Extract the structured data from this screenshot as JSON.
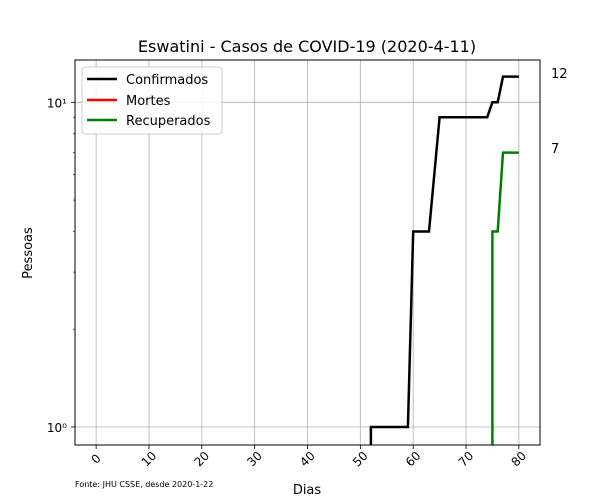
{
  "chart_data": {
    "type": "line",
    "title": "Eswatini - Casos de COVID-19 (2020-4-11)",
    "xlabel": "Dias",
    "ylabel": "Pessoas",
    "xlim": [
      -4,
      84
    ],
    "ylim": [
      0.88,
      13.5
    ],
    "yscale": "log",
    "grid": true,
    "legend_position": "top-left",
    "xticks": [
      0,
      10,
      20,
      30,
      40,
      50,
      60,
      70,
      80
    ],
    "xtick_labels": [
      "0",
      "10",
      "20",
      "30",
      "40",
      "50",
      "60",
      "70",
      "80"
    ],
    "yticks": [
      1,
      10
    ],
    "ytick_labels": [
      "10⁰",
      "10¹"
    ],
    "source_note": "Fonte: JHU CSSE, desde 2020-1-22",
    "end_labels": [
      "12",
      "7"
    ],
    "series": [
      {
        "name": "Confirmados",
        "color": "#000000",
        "points": [
          [
            52,
            0.88
          ],
          [
            52,
            1
          ],
          [
            59,
            1
          ],
          [
            60,
            4
          ],
          [
            63,
            4
          ],
          [
            65,
            9
          ],
          [
            74,
            9
          ],
          [
            75,
            10
          ],
          [
            76,
            10
          ],
          [
            77,
            12
          ],
          [
            80,
            12
          ]
        ]
      },
      {
        "name": "Mortes",
        "color": "#ff0000",
        "points": []
      },
      {
        "name": "Recuperados",
        "color": "#008000",
        "points": [
          [
            75,
            0.88
          ],
          [
            75,
            4
          ],
          [
            76,
            4
          ],
          [
            77,
            7
          ],
          [
            80,
            7
          ]
        ]
      }
    ]
  }
}
